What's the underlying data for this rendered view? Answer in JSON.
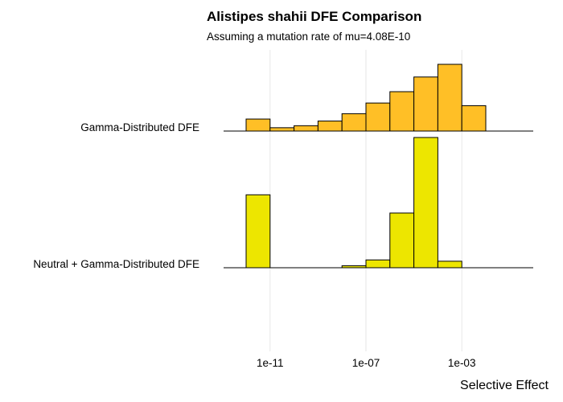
{
  "chart_data": {
    "type": "bar",
    "subtype": "ridgeline-histogram",
    "title": "Alistipes shahii DFE Comparison",
    "subtitle": "Assuming a mutation rate of mu=4.08E-10",
    "xlabel": "Selective Effect",
    "ylabel": "",
    "x_scale": "log10",
    "x_ticks": [
      {
        "value": 1e-11,
        "label": "1e-11"
      },
      {
        "value": 1e-07,
        "label": "1e-07"
      },
      {
        "value": 0.001,
        "label": "1e-03"
      }
    ],
    "grid": true,
    "series": [
      {
        "category": "Gamma-Distributed DFE",
        "color": "#FFBF26",
        "bins": [
          {
            "from": 1e-12,
            "to": 1e-11,
            "height": 0.18
          },
          {
            "from": 1e-11,
            "to": 1e-10,
            "height": 0.05
          },
          {
            "from": 1e-10,
            "to": 1e-09,
            "height": 0.08
          },
          {
            "from": 1e-09,
            "to": 1e-08,
            "height": 0.15
          },
          {
            "from": 1e-08,
            "to": 1e-07,
            "height": 0.26
          },
          {
            "from": 1e-07,
            "to": 1e-06,
            "height": 0.42
          },
          {
            "from": 1e-06,
            "to": 1e-05,
            "height": 0.59
          },
          {
            "from": 1e-05,
            "to": 0.0001,
            "height": 0.81
          },
          {
            "from": 0.0001,
            "to": 0.001,
            "height": 1.0
          },
          {
            "from": 0.001,
            "to": 0.01,
            "height": 0.38
          }
        ]
      },
      {
        "category": "Neutral + Gamma-Distributed DFE",
        "color": "#EDE600",
        "bins": [
          {
            "from": 1e-12,
            "to": 1e-11,
            "height": 0.56
          },
          {
            "from": 1e-11,
            "to": 1e-10,
            "height": 0.0
          },
          {
            "from": 1e-10,
            "to": 1e-09,
            "height": 0.0
          },
          {
            "from": 1e-09,
            "to": 1e-08,
            "height": 0.0
          },
          {
            "from": 1e-08,
            "to": 1e-07,
            "height": 0.015
          },
          {
            "from": 1e-07,
            "to": 1e-06,
            "height": 0.06
          },
          {
            "from": 1e-06,
            "to": 1e-05,
            "height": 0.42
          },
          {
            "from": 1e-05,
            "to": 0.0001,
            "height": 1.0
          },
          {
            "from": 0.0001,
            "to": 0.001,
            "height": 0.05
          }
        ]
      }
    ]
  }
}
